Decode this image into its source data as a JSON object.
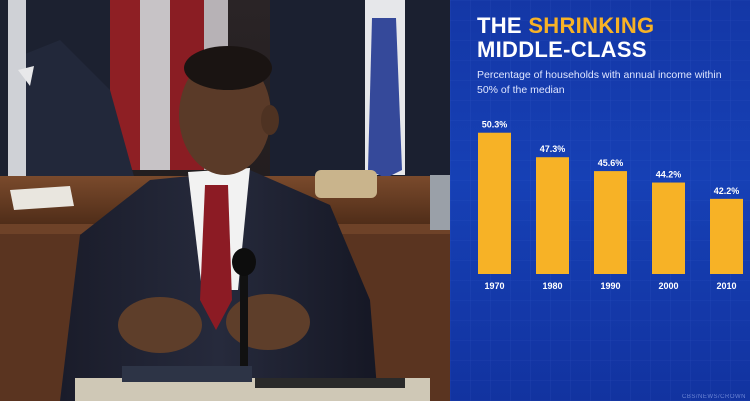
{
  "panel": {
    "title_part1": "THE ",
    "title_highlight": "SHRINKING",
    "title_line2": "MIDDLE-CLASS",
    "subtitle": "Percentage of households with annual income within 50% of the median",
    "watermark": "CBS/NEWS/CROWN",
    "colors": {
      "background": "#1640b5",
      "bar": "#f7b226",
      "highlight": "#f7b226",
      "text": "#ffffff"
    }
  },
  "photo": {
    "description_icon": "speaker-at-podium-photo"
  },
  "chart_data": {
    "type": "bar",
    "title": "THE SHRINKING MIDDLE-CLASS",
    "subtitle": "Percentage of households with annual income within 50% of the median",
    "categories": [
      "1970",
      "1980",
      "1990",
      "2000",
      "2010"
    ],
    "values": [
      50.3,
      47.3,
      45.6,
      44.2,
      42.2
    ],
    "value_labels": [
      "50.3%",
      "47.3%",
      "45.6%",
      "44.2%",
      "42.2%"
    ],
    "xlabel": "",
    "ylabel": "",
    "ylim": [
      33,
      51
    ],
    "grid": true,
    "legend": "none"
  }
}
